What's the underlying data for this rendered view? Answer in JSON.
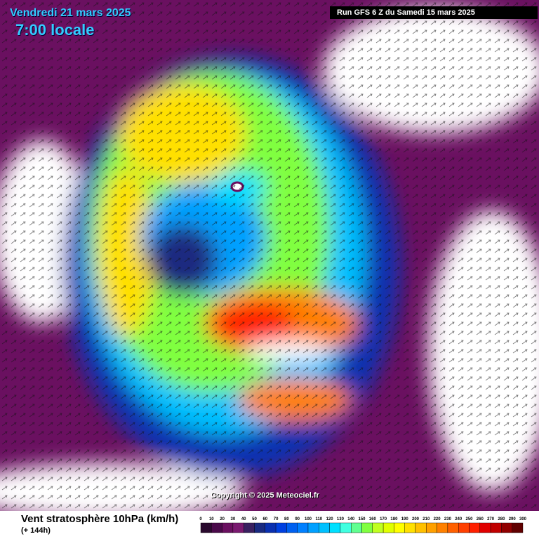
{
  "header": {
    "date": "Vendredi 21 mars 2025",
    "hour": "7:00 locale",
    "run": "Run GFS 6 Z du Samedi 15 mars 2025"
  },
  "copyright": "Copyright © 2025 Meteociel.fr",
  "legend": {
    "title": "Vent stratosphère 10hPa (km/h)",
    "subtitle": "(+ 144h)",
    "ticks": [
      0,
      10,
      20,
      30,
      40,
      50,
      60,
      70,
      80,
      90,
      100,
      110,
      120,
      130,
      140,
      150,
      160,
      170,
      180,
      190,
      200,
      210,
      220,
      230,
      240,
      250,
      260,
      270,
      280,
      290,
      300
    ],
    "colors": [
      "#2a0a2e",
      "#4a0a4a",
      "#6a1060",
      "#7a1a70",
      "#3a2060",
      "#1a2a80",
      "#0a30b0",
      "#0040e0",
      "#0060f0",
      "#0080ff",
      "#00a0ff",
      "#00c0ff",
      "#00e0ff",
      "#40ffe0",
      "#60ff90",
      "#80ff40",
      "#c0ff20",
      "#e0ff00",
      "#ffff00",
      "#ffe000",
      "#ffc000",
      "#ffa000",
      "#ff8000",
      "#ff6000",
      "#ff4000",
      "#ff2000",
      "#e00000",
      "#c00000",
      "#900000",
      "#600000"
    ]
  }
}
